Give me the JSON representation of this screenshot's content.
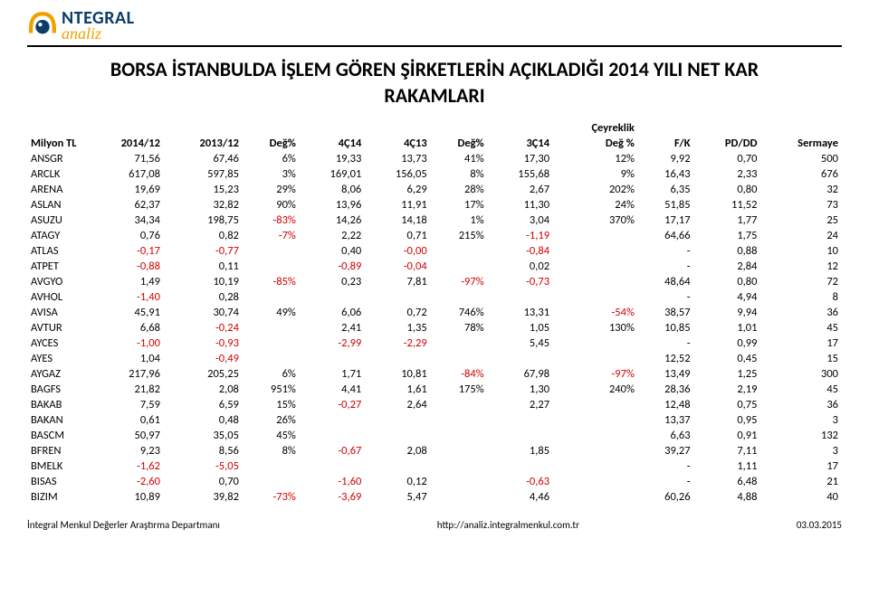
{
  "logo": {
    "integral": "NTEGRAL",
    "analiz": "analiz"
  },
  "title_line1": "BORSA İSTANBULDA İŞLEM GÖREN ŞİRKETLERİN AÇIKLADIĞI 2014 YILI NET KAR",
  "title_line2": "RAKAMLARI",
  "super_header": "Çeyreklik",
  "columns": [
    "Milyon TL",
    "2014/12",
    "2013/12",
    "Değ%",
    "4Ç14",
    "4Ç13",
    "Değ%",
    "3Ç14",
    "Değ %",
    "F/K",
    "PD/DD",
    "Sermaye"
  ],
  "colors": {
    "neg": "#d10000",
    "text": "#000000",
    "logo_blue": "#0b3d66",
    "logo_orange": "#f2a000"
  },
  "rows": [
    [
      "ANSGR",
      "71,56",
      "67,46",
      "6%",
      "19,33",
      "13,73",
      "41%",
      "17,30",
      "12%",
      "9,92",
      "0,70",
      "500"
    ],
    [
      "ARCLK",
      "617,08",
      "597,85",
      "3%",
      "169,01",
      "156,05",
      "8%",
      "155,68",
      "9%",
      "16,43",
      "2,33",
      "676"
    ],
    [
      "ARENA",
      "19,69",
      "15,23",
      "29%",
      "8,06",
      "6,29",
      "28%",
      "2,67",
      "202%",
      "6,35",
      "0,80",
      "32"
    ],
    [
      "ASLAN",
      "62,37",
      "32,82",
      "90%",
      "13,96",
      "11,91",
      "17%",
      "11,30",
      "24%",
      "51,85",
      "11,52",
      "73"
    ],
    [
      "ASUZU",
      "34,34",
      "198,75",
      "-83%",
      "14,26",
      "14,18",
      "1%",
      "3,04",
      "370%",
      "17,17",
      "1,77",
      "25"
    ],
    [
      "ATAGY",
      "0,76",
      "0,82",
      "-7%",
      "2,22",
      "0,71",
      "215%",
      "-1,19",
      "",
      "64,66",
      "1,75",
      "24"
    ],
    [
      "ATLAS",
      "-0,17",
      "-0,77",
      "",
      "0,40",
      "-0,00",
      "",
      "-0,84",
      "",
      "-",
      "0,88",
      "10"
    ],
    [
      "ATPET",
      "-0,88",
      "0,11",
      "",
      "-0,89",
      "-0,04",
      "",
      "0,02",
      "",
      "-",
      "2,84",
      "12"
    ],
    [
      "AVGYO",
      "1,49",
      "10,19",
      "-85%",
      "0,23",
      "7,81",
      "-97%",
      "-0,73",
      "",
      "48,64",
      "0,80",
      "72"
    ],
    [
      "AVHOL",
      "-1,40",
      "0,28",
      "",
      "",
      "",
      "",
      "",
      "",
      "-",
      "4,94",
      "8"
    ],
    [
      "AVISA",
      "45,91",
      "30,74",
      "49%",
      "6,06",
      "0,72",
      "746%",
      "13,31",
      "-54%",
      "38,57",
      "9,94",
      "36"
    ],
    [
      "AVTUR",
      "6,68",
      "-0,24",
      "",
      "2,41",
      "1,35",
      "78%",
      "1,05",
      "130%",
      "10,85",
      "1,01",
      "45"
    ],
    [
      "AYCES",
      "-1,00",
      "-0,93",
      "",
      "-2,99",
      "-2,29",
      "",
      "5,45",
      "",
      "-",
      "0,99",
      "17"
    ],
    [
      "AYES",
      "1,04",
      "-0,49",
      "",
      "",
      "",
      "",
      "",
      "",
      "12,52",
      "0,45",
      "15"
    ],
    [
      "AYGAZ",
      "217,96",
      "205,25",
      "6%",
      "1,71",
      "10,81",
      "-84%",
      "67,98",
      "-97%",
      "13,49",
      "1,25",
      "300"
    ],
    [
      "BAGFS",
      "21,82",
      "2,08",
      "951%",
      "4,41",
      "1,61",
      "175%",
      "1,30",
      "240%",
      "28,36",
      "2,19",
      "45"
    ],
    [
      "BAKAB",
      "7,59",
      "6,59",
      "15%",
      "-0,27",
      "2,64",
      "",
      "2,27",
      "",
      "12,48",
      "0,75",
      "36"
    ],
    [
      "BAKAN",
      "0,61",
      "0,48",
      "26%",
      "",
      "",
      "",
      "",
      "",
      "13,37",
      "0,95",
      "3"
    ],
    [
      "BASCM",
      "50,97",
      "35,05",
      "45%",
      "",
      "",
      "",
      "",
      "",
      "6,63",
      "0,91",
      "132"
    ],
    [
      "BFREN",
      "9,23",
      "8,56",
      "8%",
      "-0,67",
      "2,08",
      "",
      "1,85",
      "",
      "39,27",
      "7,11",
      "3"
    ],
    [
      "BMELK",
      "-1,62",
      "-5,05",
      "",
      "",
      "",
      "",
      "",
      "",
      "-",
      "1,11",
      "17"
    ],
    [
      "BISAS",
      "-2,60",
      "0,70",
      "",
      "-1,60",
      "0,12",
      "",
      "-0,63",
      "",
      "-",
      "6,48",
      "21"
    ],
    [
      "BIZIM",
      "10,89",
      "39,82",
      "-73%",
      "-3,69",
      "5,47",
      "",
      "4,46",
      "",
      "60,26",
      "4,88",
      "40"
    ]
  ],
  "footer": {
    "left": "İntegral Menkul Değerler Araştırma Departmanı",
    "center": "http://analiz.integralmenkul.com.tr",
    "right": "03.03.2015"
  }
}
